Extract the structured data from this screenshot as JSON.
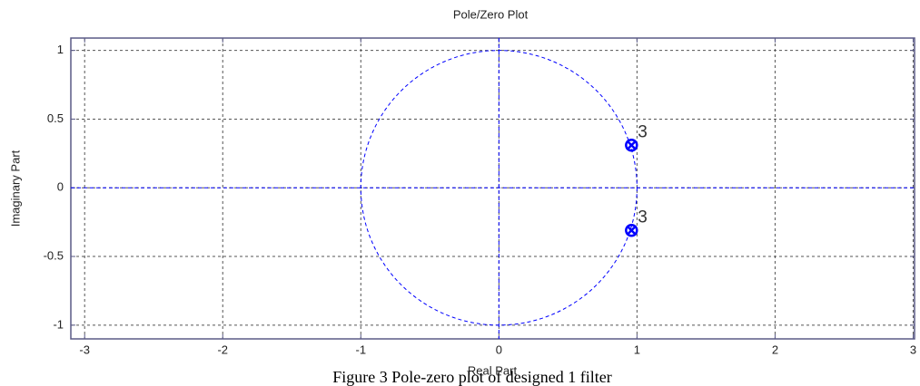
{
  "chart_data": {
    "type": "pzmap",
    "title": "Pole/Zero Plot",
    "xlabel": "Real Part",
    "ylabel": "Imaginary Part",
    "xlim": [
      -3.1,
      3.01
    ],
    "ylim": [
      -1.1,
      1.09
    ],
    "xticks": [
      -3,
      -2,
      -1,
      0,
      1,
      2,
      3
    ],
    "yticks": [
      -1,
      -0.5,
      0,
      0.5,
      1
    ],
    "grid": true,
    "unit_circle": true,
    "color": "#0000ff",
    "zeros": {
      "x": [
        0.96,
        0.96
      ],
      "y": [
        0.31,
        -0.31
      ]
    },
    "poles": {
      "x": [
        0.96,
        0.96
      ],
      "y": [
        0.31,
        -0.31
      ]
    },
    "multiplicity": [
      3,
      3
    ],
    "caption": "Figure 3 Pole-zero plot of designed 1 filter"
  }
}
